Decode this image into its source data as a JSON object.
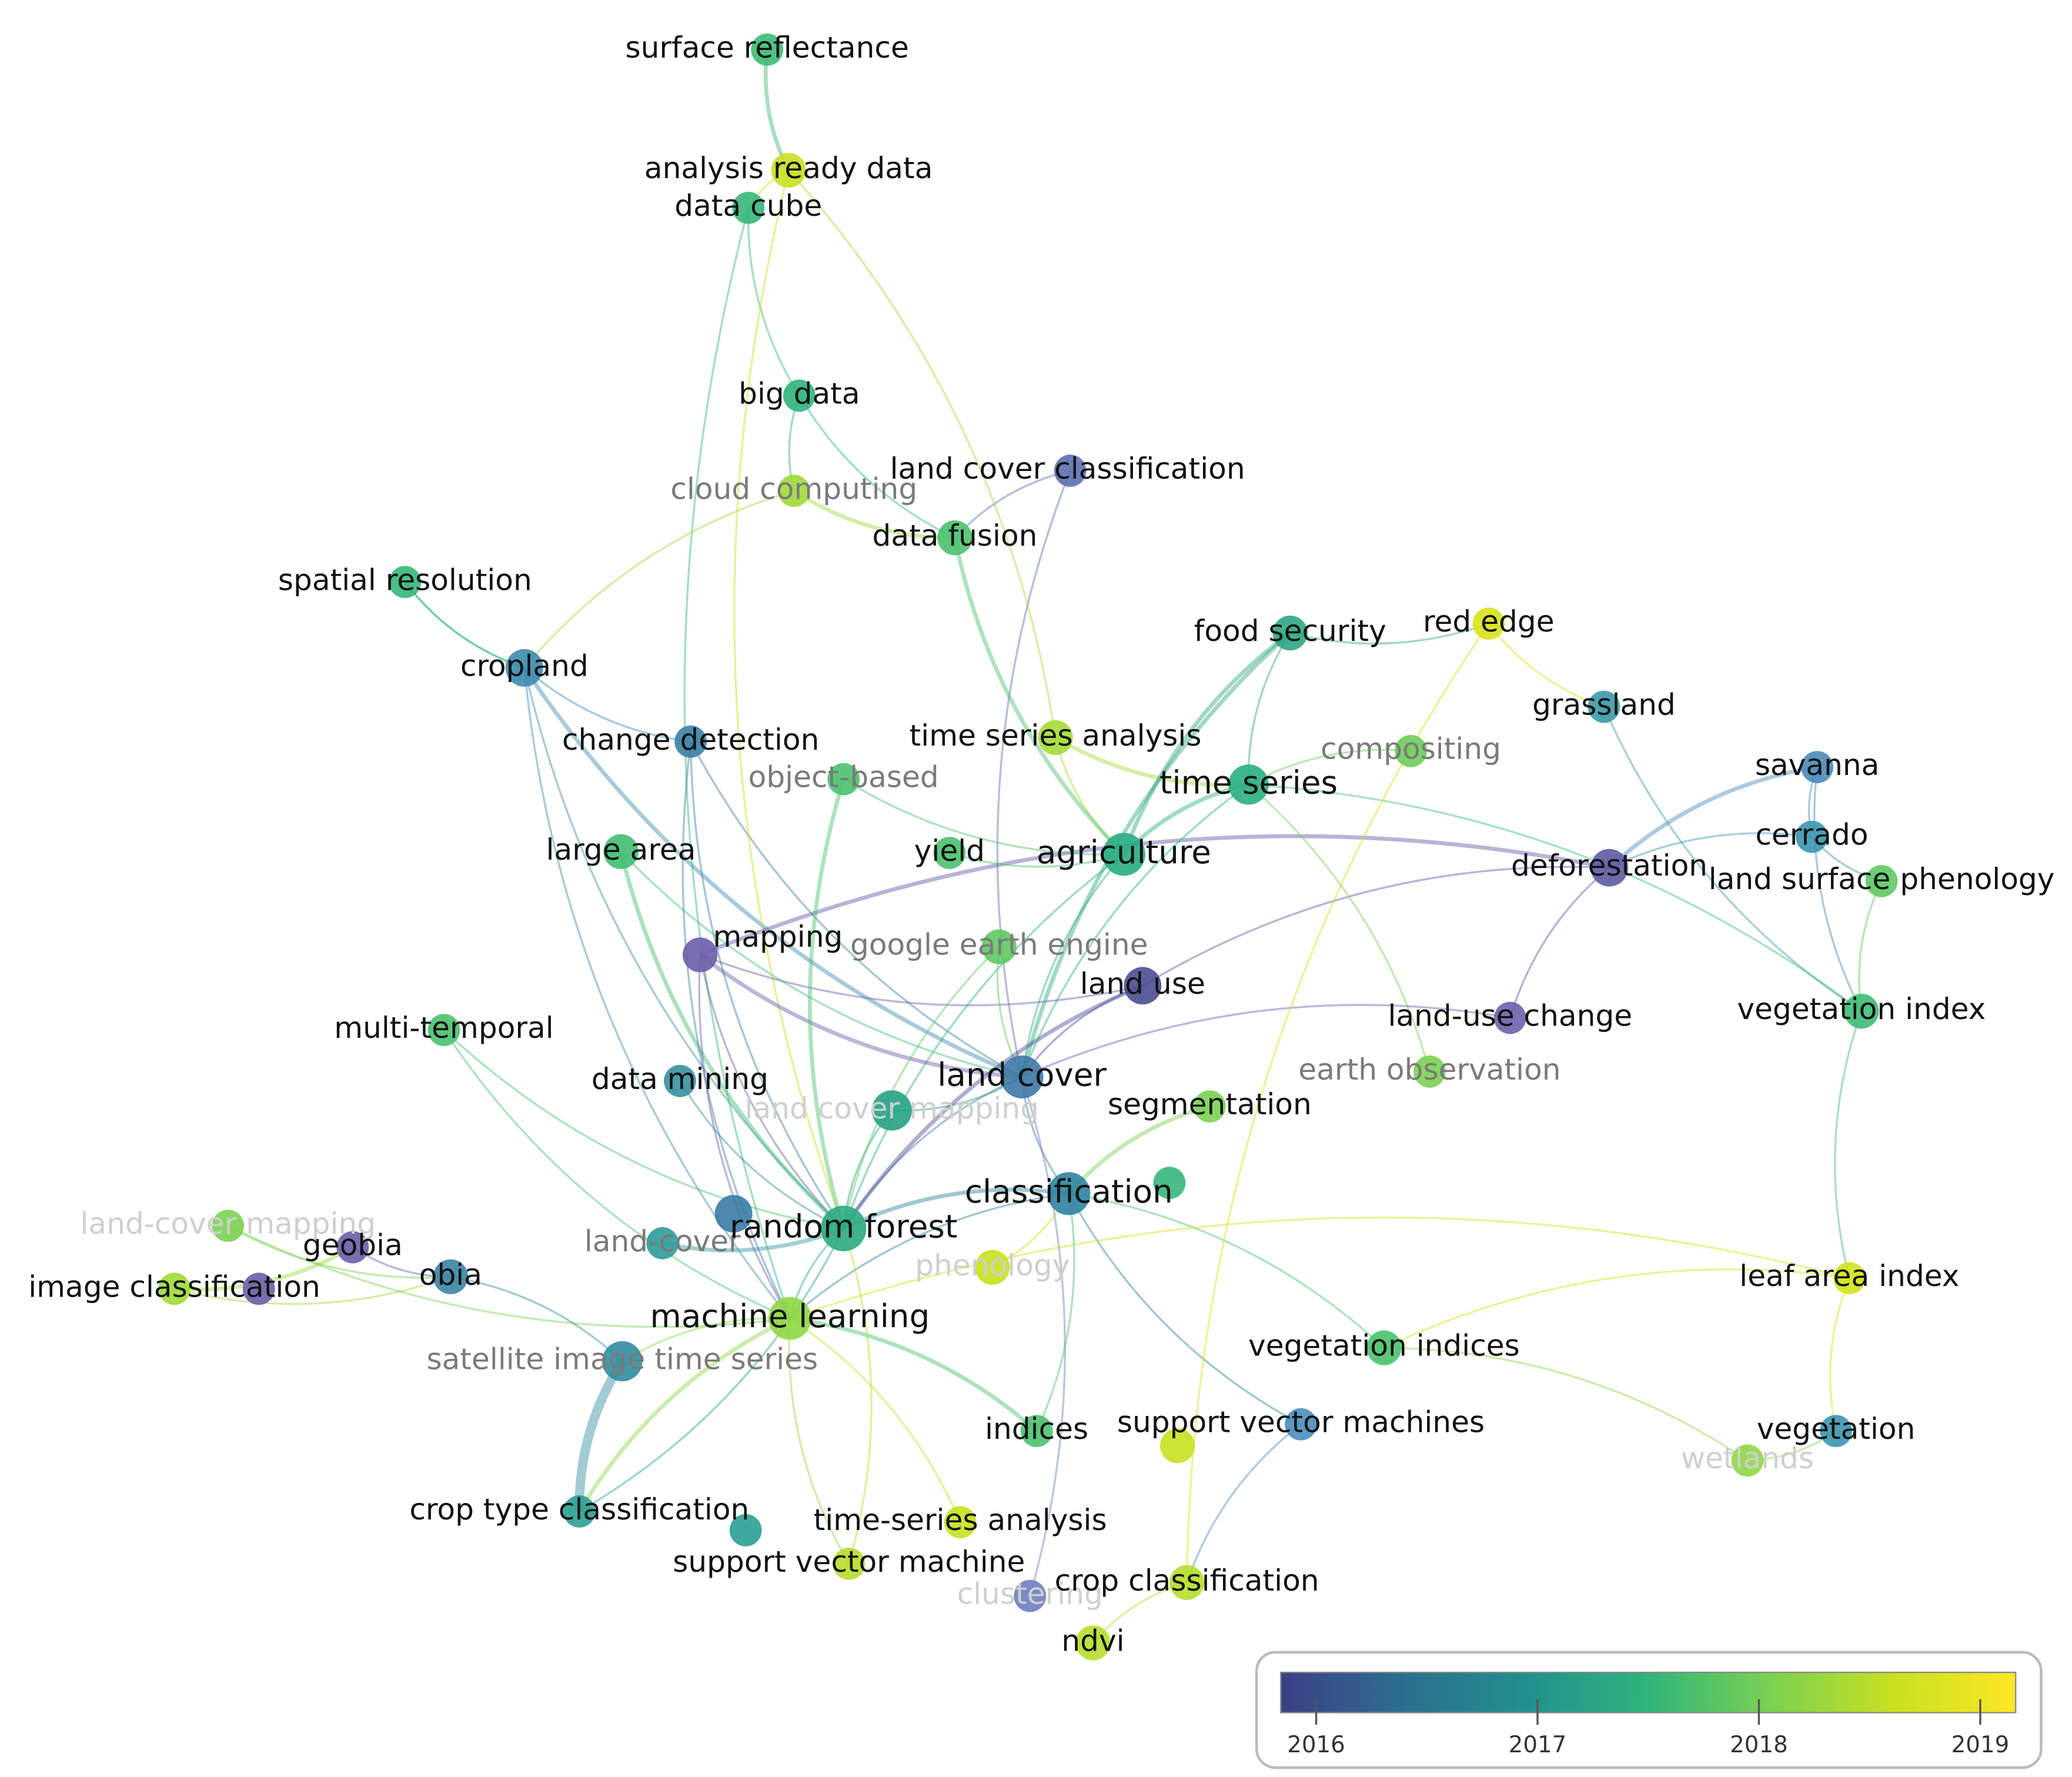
{
  "network": {
    "nodes": [
      {
        "label": "surface reflectance",
        "color": "#3cbb75"
      },
      {
        "label": "analysis ready data",
        "color": "#c8e020"
      },
      {
        "label": "data cube",
        "color": "#35b779"
      },
      {
        "label": "big data",
        "color": "#2fb47c"
      },
      {
        "label": "cloud computing",
        "color": "#9fda3a"
      },
      {
        "label": "land cover classification",
        "color": "#5c6fb0"
      },
      {
        "label": "data fusion",
        "color": "#4ac16d"
      },
      {
        "label": "spatial resolution",
        "color": "#35b779"
      },
      {
        "label": "cropland",
        "color": "#3b8bad"
      },
      {
        "label": "change detection",
        "color": "#3a7fa6"
      },
      {
        "label": "time series analysis",
        "color": "#a5db36"
      },
      {
        "label": "object-based",
        "color": "#4ac16d"
      },
      {
        "label": "food security",
        "color": "#2ea680"
      },
      {
        "label": "red edge",
        "color": "#d8e219"
      },
      {
        "label": "grassland",
        "color": "#3b99a8"
      },
      {
        "label": "compositing",
        "color": "#6ccd5a"
      },
      {
        "label": "time series",
        "color": "#29af7f"
      },
      {
        "label": "savanna",
        "color": "#4a89b8"
      },
      {
        "label": "cerrado",
        "color": "#3a96ae"
      },
      {
        "label": "large area",
        "color": "#40bd72"
      },
      {
        "label": "yield",
        "color": "#4ac16d"
      },
      {
        "label": "agriculture",
        "color": "#27ad81"
      },
      {
        "label": "deforestation",
        "color": "#5d5aa3"
      },
      {
        "label": "land surface phenology",
        "color": "#5ec962"
      },
      {
        "label": "mapping",
        "color": "#6a5ea8"
      },
      {
        "label": "google earth engine",
        "color": "#5ec962"
      },
      {
        "label": "land use",
        "color": "#4a4d92"
      },
      {
        "label": "land-use change",
        "color": "#6b61ab"
      },
      {
        "label": "multi-temporal",
        "color": "#4ac16d"
      },
      {
        "label": "vegetation index",
        "color": "#3dbc74"
      },
      {
        "label": "data mining",
        "color": "#3a8fa0"
      },
      {
        "label": "land cover",
        "color": "#3d79a6"
      },
      {
        "label": "land cover mapping",
        "color": "#26a283"
      },
      {
        "label": "segmentation",
        "color": "#7ad151"
      },
      {
        "label": "earth observation",
        "color": "#7ad151"
      },
      {
        "label": "classification",
        "color": "#2f83a0"
      },
      {
        "label": "land-cover mapping",
        "color": "#7ad151"
      },
      {
        "label": "geobia",
        "color": "#6a5ea8"
      },
      {
        "label": "image classification",
        "color": "#a0da39"
      },
      {
        "label": "obia",
        "color": "#3a83a6"
      },
      {
        "label": "land-cover",
        "color": "#2f9a9a"
      },
      {
        "label": "random forest",
        "color": "#2bab80"
      },
      {
        "label": "phenology",
        "color": "#c8e020"
      },
      {
        "label": "machine learning",
        "color": "#8fd744"
      },
      {
        "label": "satellite image time series",
        "color": "#2f8ea0"
      },
      {
        "label": "vegetation indices",
        "color": "#4ac16d"
      },
      {
        "label": "indices",
        "color": "#4ac16d"
      },
      {
        "label": "support vector machines",
        "color": "#4a8dbb"
      },
      {
        "label": "leaf area index",
        "color": "#d2e21b"
      },
      {
        "label": "vegetation",
        "color": "#3a96ae"
      },
      {
        "label": "wetlands",
        "color": "#8fd744"
      },
      {
        "label": "crop type classification",
        "color": "#2a9f94"
      },
      {
        "label": "time-series analysis",
        "color": "#c8e020"
      },
      {
        "label": "support vector machine",
        "color": "#b5de2b"
      },
      {
        "label": "clustering",
        "color": "#6a80bd"
      },
      {
        "label": "crop classification",
        "color": "#b5de2b"
      },
      {
        "label": "ndvi",
        "color": "#b5de2b"
      }
    ],
    "colorbar": {
      "lim": [
        2015.84,
        2019.16
      ],
      "ticks": [
        2016,
        2017,
        2018,
        2019
      ],
      "colors": [
        "#3b3f86",
        "#2c6e8e",
        "#21908d",
        "#2fb47c",
        "#7ad151",
        "#c8e020",
        "#fde725"
      ]
    }
  }
}
